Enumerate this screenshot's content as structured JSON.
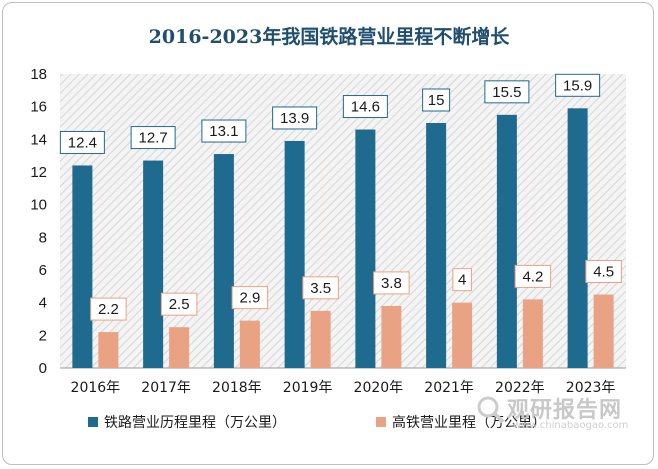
{
  "chart_data": {
    "type": "bar",
    "title": "2016-2023年我国铁路营业里程不断增长",
    "categories": [
      "2016年",
      "2017年",
      "2018年",
      "2019年",
      "2020年",
      "2021年",
      "2022年",
      "2023年"
    ],
    "series": [
      {
        "name": "铁路营业历程里程（万公里）",
        "color": "#1f6a8f",
        "values": [
          12.4,
          12.7,
          13.1,
          13.9,
          14.6,
          15,
          15.5,
          15.9
        ],
        "labels": [
          "12.4",
          "12.7",
          "13.1",
          "13.9",
          "14.6",
          "15",
          "15.5",
          "15.9"
        ]
      },
      {
        "name": "高铁营业里程（万公里）",
        "color": "#e9a283",
        "values": [
          2.2,
          2.5,
          2.9,
          3.5,
          3.8,
          4,
          4.2,
          4.5
        ],
        "labels": [
          "2.2",
          "2.5",
          "2.9",
          "3.5",
          "3.8",
          "4",
          "4.2",
          "4.5"
        ]
      }
    ],
    "ylim": [
      0,
      18
    ],
    "yticks": [
      0,
      2,
      4,
      6,
      8,
      10,
      12,
      14,
      16,
      18
    ],
    "grid": false,
    "legend": "bottom",
    "xlabel": "",
    "ylabel": ""
  },
  "watermark": {
    "text": "观研报告网",
    "url": "www.chinabaogao.com",
    "icon": "magnifier-logo-icon"
  }
}
